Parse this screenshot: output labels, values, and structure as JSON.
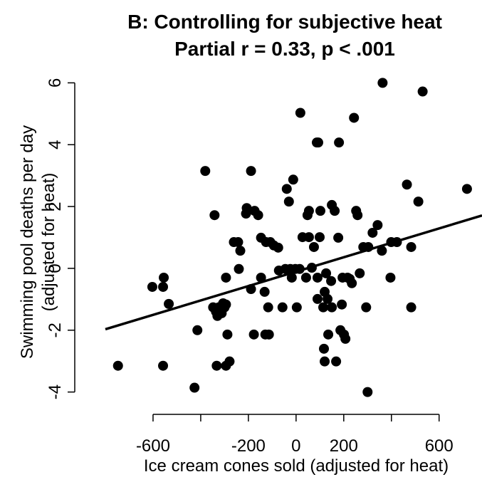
{
  "chart_data": {
    "type": "scatter",
    "title": "B: Controlling for subjective heat",
    "subtitle": "Partial r = 0.33, p < .001",
    "xlabel": "Ice cream cones sold (adjusted for heat)",
    "ylabel": [
      "Swimming pool deaths per day",
      "(adjusted for heat)"
    ],
    "color": "#000000",
    "xlim": [
      -800,
      780
    ],
    "ylim": [
      -4.4,
      6.4
    ],
    "xticks": [
      -600,
      -200,
      0,
      200,
      600
    ],
    "x_unlabeled_ticks": [
      -400,
      400
    ],
    "yticks": [
      -4,
      -2,
      0,
      2,
      4,
      6
    ],
    "trend_line": {
      "x": [
        -800,
        780
      ],
      "y": [
        -1.97,
        1.71
      ]
    },
    "x": [
      -747,
      -603,
      -558,
      -558,
      -555,
      -534,
      -426,
      -414,
      -381,
      -342,
      -348,
      -336,
      -324,
      -330,
      -306,
      -300,
      -312,
      -294,
      -333,
      -294,
      -279,
      -288,
      -294,
      -261,
      -243,
      -240,
      -234,
      -210,
      -207,
      -189,
      -189,
      -177,
      -174,
      -159,
      -147,
      -147,
      -132,
      -129,
      -126,
      -117,
      -114,
      -108,
      -93,
      -75,
      -72,
      -57,
      -45,
      -39,
      -30,
      -24,
      -18,
      -12,
      -3,
      3,
      15,
      18,
      27,
      42,
      48,
      54,
      54,
      66,
      75,
      87,
      93,
      90,
      90,
      99,
      102,
      114,
      120,
      117,
      120,
      126,
      132,
      135,
      147,
      150,
      150,
      162,
      168,
      177,
      180,
      186,
      192,
      195,
      201,
      207,
      216,
      225,
      234,
      243,
      252,
      258,
      267,
      282,
      294,
      300,
      303,
      321,
      342,
      360,
      363,
      396,
      399,
      423,
      465,
      483,
      483,
      513,
      531,
      717
    ],
    "values": [
      -3.15,
      -0.6,
      -3.15,
      -0.6,
      -0.3,
      -1.15,
      -3.86,
      -2.0,
      3.15,
      1.72,
      -1.26,
      -1.4,
      -1.26,
      -1.54,
      -1.13,
      -1.26,
      -1.45,
      -1.17,
      -3.15,
      -3.15,
      -3.01,
      -2.14,
      -0.3,
      0.85,
      0.85,
      -0.02,
      0.57,
      1.77,
      1.95,
      3.15,
      -0.67,
      -2.14,
      1.86,
      1.72,
      0.99,
      -0.3,
      -0.76,
      -2.14,
      0.85,
      -1.26,
      -2.14,
      0.85,
      0.74,
      0.67,
      -0.07,
      -1.26,
      -0.02,
      2.57,
      2.16,
      -0.02,
      -0.3,
      2.87,
      -0.02,
      -1.26,
      -0.02,
      5.03,
      1.01,
      -0.3,
      1.72,
      1.86,
      1.01,
      0.02,
      0.69,
      4.07,
      4.07,
      -0.3,
      -0.99,
      1.01,
      1.86,
      -1.26,
      -0.76,
      -2.6,
      -3.01,
      -0.16,
      -0.99,
      -2.14,
      -0.41,
      -1.26,
      2.05,
      1.86,
      -3.01,
      0.99,
      4.07,
      -2.0,
      -1.17,
      -0.3,
      -2.14,
      -2.28,
      -0.3,
      -0.34,
      -0.48,
      4.87,
      1.86,
      1.72,
      -0.16,
      0.69,
      -1.26,
      -4.0,
      0.69,
      1.15,
      1.4,
      0.57,
      6.0,
      -0.3,
      0.85,
      0.85,
      2.71,
      0.69,
      -1.26,
      2.16,
      5.72,
      2.57
    ]
  }
}
